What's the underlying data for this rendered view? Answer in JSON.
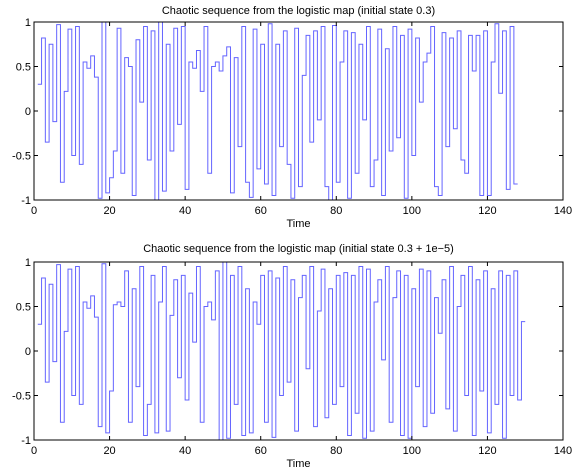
{
  "chart_data": [
    {
      "type": "line",
      "step": true,
      "title": "Chaotic sequence from the logistic map (initial state 0.3)",
      "xlabel": "Time",
      "ylabel": "",
      "xlim": [
        0,
        140
      ],
      "ylim": [
        -1,
        1
      ],
      "xticks": [
        "0",
        "20",
        "40",
        "60",
        "80",
        "100",
        "120",
        "140"
      ],
      "yticks": [
        "-1",
        "-0.5",
        "0",
        "0.5",
        "1"
      ],
      "grid": false,
      "color": "#6464ff",
      "series": [
        {
          "x0": 1,
          "values": [
            0.3,
            0.82,
            -0.35,
            0.75,
            -0.12,
            0.97,
            -0.8,
            0.22,
            0.92,
            -0.5,
            0.95,
            -0.6,
            0.55,
            0.48,
            0.62,
            0.38,
            -0.98,
            1.0,
            -0.92,
            -0.75,
            -0.45,
            0.93,
            -0.7,
            0.6,
            0.5,
            -0.95,
            0.8,
            0.1,
            0.95,
            -0.55,
            0.9,
            -1.0,
            1.0,
            -0.9,
            0.75,
            -0.45,
            0.93,
            -0.15,
            0.95,
            -0.88,
            0.55,
            0.48,
            0.68,
            0.22,
            0.95,
            -0.7,
            0.5,
            0.55,
            0.45,
            0.62,
            0.72,
            -0.92,
            0.6,
            -0.4,
            0.95,
            -0.8,
            -0.97,
            0.92,
            -0.65,
            0.75,
            -0.82,
            0.98,
            -0.95,
            0.75,
            -0.4,
            0.9,
            -0.6,
            -0.98,
            0.93,
            -0.85,
            0.4,
            0.85,
            -0.35,
            0.9,
            -0.1,
            0.95,
            -0.85,
            -1.0,
            0.96,
            -0.8,
            0.55,
            0.9,
            -0.98,
            0.88,
            -0.7,
            0.75,
            -0.1,
            0.95,
            -0.85,
            -0.55,
            0.92,
            -0.95,
            0.7,
            -0.45,
            0.95,
            -0.3,
            0.85,
            -0.98,
            0.92,
            -0.5,
            0.82,
            0.1,
            0.55,
            0.65,
            0.95,
            -0.85,
            -0.95,
            0.88,
            -0.4,
            0.82,
            -0.2,
            0.9,
            -0.55,
            -0.7,
            0.85,
            0.45,
            0.85,
            -0.95,
            0.9,
            -0.95,
            0.55,
            0.98,
            0.2,
            0.9,
            -0.88,
            0.95,
            -0.82
          ]
        }
      ]
    },
    {
      "type": "line",
      "step": true,
      "title": "Chaotic sequence from the logistic map (initial state 0.3 + 1e−5)",
      "xlabel": "Time",
      "ylabel": "",
      "xlim": [
        0,
        140
      ],
      "ylim": [
        -1,
        1
      ],
      "xticks": [
        "0",
        "20",
        "40",
        "60",
        "80",
        "100",
        "120",
        "140"
      ],
      "yticks": [
        "-1",
        "-0.5",
        "0",
        "0.5",
        "1"
      ],
      "grid": false,
      "color": "#6464ff",
      "series": [
        {
          "x0": 1,
          "values": [
            0.3,
            0.82,
            -0.35,
            0.75,
            -0.12,
            0.97,
            -0.8,
            0.22,
            0.92,
            -0.5,
            0.95,
            -0.6,
            0.55,
            0.48,
            0.62,
            0.38,
            -0.85,
            0.98,
            -0.92,
            -0.45,
            0.52,
            0.55,
            0.5,
            0.9,
            -0.8,
            0.7,
            -0.4,
            0.95,
            -0.95,
            -0.6,
            0.85,
            -0.92,
            0.55,
            0.95,
            -0.9,
            0.4,
            0.8,
            -0.3,
            0.85,
            -0.55,
            0.65,
            0.1,
            0.95,
            -0.8,
            0.5,
            0.55,
            0.35,
            0.9,
            -1.0,
            1.0,
            -0.98,
            0.85,
            -0.6,
            0.95,
            -0.95,
            0.7,
            -0.92,
            0.55,
            0.3,
            0.85,
            -0.8,
            0.9,
            -0.97,
            0.82,
            -0.5,
            0.95,
            -0.35,
            0.8,
            -0.9,
            0.6,
            0.85,
            -0.2,
            0.95,
            -0.85,
            0.45,
            0.92,
            -0.75,
            0.7,
            -0.6,
            0.85,
            -0.4,
            0.88,
            -0.95,
            0.85,
            -0.7,
            0.95,
            -0.98,
            0.92,
            -0.9,
            0.55,
            0.8,
            -0.1,
            0.95,
            -0.8,
            0.6,
            0.9,
            -0.95,
            0.85,
            -0.98,
            0.7,
            -0.4,
            0.92,
            -0.85,
            0.9,
            -0.7,
            0.6,
            0.2,
            0.8,
            -0.65,
            0.95,
            -0.9,
            0.5,
            0.85,
            -0.5,
            0.95,
            -0.95,
            0.8,
            -0.45,
            0.9,
            -0.92,
            0.7,
            -0.6,
            0.9,
            -0.98,
            0.85,
            -0.5,
            0.9,
            -0.55,
            0.33
          ]
        }
      ]
    }
  ]
}
